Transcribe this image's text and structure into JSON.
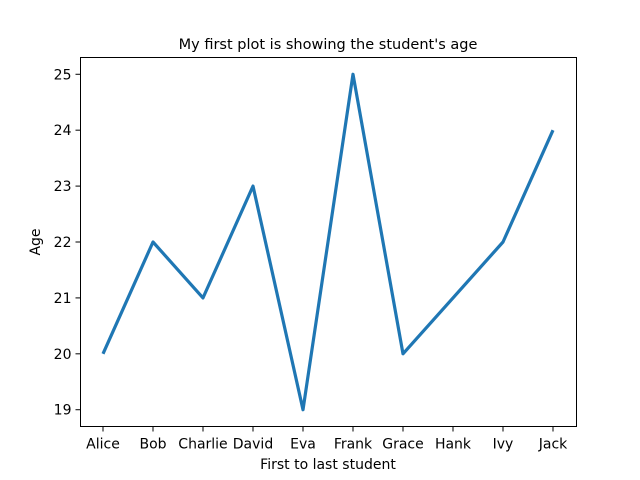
{
  "chart_data": {
    "type": "line",
    "title": "My first plot is showing the student's age",
    "xlabel": "First to last student",
    "ylabel": "Age",
    "categories": [
      "Alice",
      "Bob",
      "Charlie",
      "David",
      "Eva",
      "Frank",
      "Grace",
      "Hank",
      "Ivy",
      "Jack"
    ],
    "series": [
      {
        "values": [
          20,
          22,
          21,
          23,
          19,
          25,
          20,
          21,
          22,
          24
        ],
        "color": "#1f77b4"
      }
    ],
    "ylim": [
      18.7,
      25.3
    ],
    "yticks": [
      19,
      20,
      21,
      22,
      23,
      24,
      25
    ],
    "grid": false
  }
}
